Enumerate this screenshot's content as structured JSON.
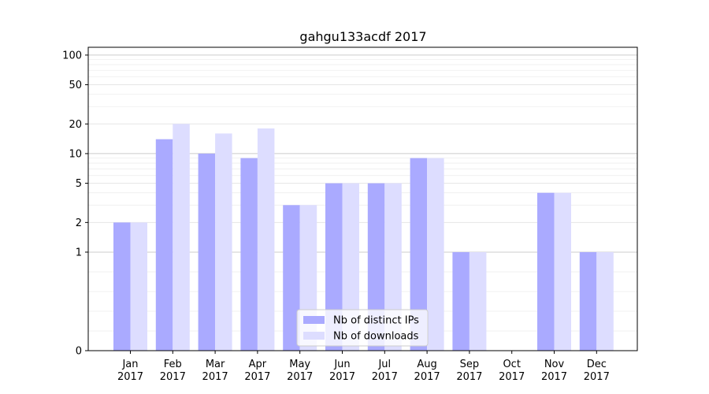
{
  "chart_data": {
    "type": "bar",
    "title": "gahgu133acdf 2017",
    "xlabel": "",
    "ylabel": "",
    "scale": "symlog",
    "ylim": [
      0,
      120
    ],
    "yticks": [
      0,
      1,
      2,
      5,
      10,
      20,
      50,
      100
    ],
    "ytick_labels": [
      "0",
      "1",
      "2",
      "5",
      "10",
      "20",
      "50",
      "100"
    ],
    "categories": [
      {
        "month": "Jan",
        "year": "2017"
      },
      {
        "month": "Feb",
        "year": "2017"
      },
      {
        "month": "Mar",
        "year": "2017"
      },
      {
        "month": "Apr",
        "year": "2017"
      },
      {
        "month": "May",
        "year": "2017"
      },
      {
        "month": "Jun",
        "year": "2017"
      },
      {
        "month": "Jul",
        "year": "2017"
      },
      {
        "month": "Aug",
        "year": "2017"
      },
      {
        "month": "Sep",
        "year": "2017"
      },
      {
        "month": "Oct",
        "year": "2017"
      },
      {
        "month": "Nov",
        "year": "2017"
      },
      {
        "month": "Dec",
        "year": "2017"
      }
    ],
    "series": [
      {
        "name": "Nb of distinct IPs",
        "color": "#aaaaff",
        "values": [
          2,
          14,
          10,
          9,
          3,
          5,
          5,
          9,
          1,
          0,
          4,
          1
        ]
      },
      {
        "name": "Nb of downloads",
        "color": "#ddddff",
        "values": [
          2,
          20,
          16,
          18,
          3,
          5,
          5,
          9,
          1,
          0,
          4,
          1
        ]
      }
    ],
    "grid": true,
    "legend_position": "bottom-center"
  }
}
